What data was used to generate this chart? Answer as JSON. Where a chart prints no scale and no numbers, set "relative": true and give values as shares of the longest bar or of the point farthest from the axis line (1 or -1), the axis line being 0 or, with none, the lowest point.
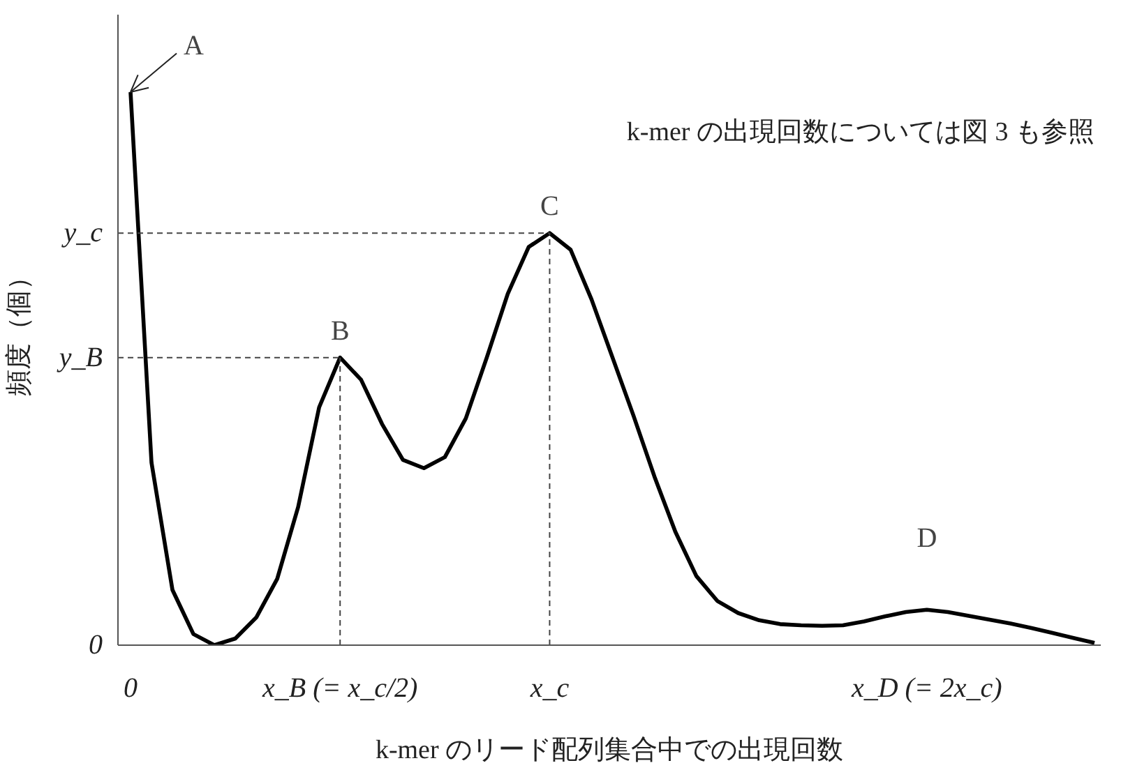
{
  "chart_data": {
    "type": "line",
    "relative": true,
    "xlabel": "k-mer のリード配列集合中での出現回数",
    "ylabel": "頻度（個）",
    "categories": [
      "0",
      null,
      null,
      null,
      null,
      null,
      null,
      null,
      null,
      null,
      "x_B (= x_c/2)",
      null,
      null,
      null,
      null,
      null,
      null,
      null,
      null,
      null,
      "x_c",
      null,
      null,
      null,
      null,
      null,
      null,
      null,
      null,
      null,
      null,
      null,
      null,
      null,
      null,
      null,
      null,
      null,
      "x_D (= 2x_c)",
      null,
      null,
      null,
      null,
      null,
      null,
      null,
      null
    ],
    "series": [
      {
        "color": "#000000",
        "values": [
          1.0,
          0.33,
          0.1,
          0.02,
          0,
          0.012,
          0.05,
          0.12,
          0.25,
          0.43,
          0.52,
          0.48,
          0.4,
          0.335,
          0.32,
          0.34,
          0.41,
          0.52,
          0.635,
          0.72,
          0.745,
          0.715,
          0.625,
          0.52,
          0.415,
          0.305,
          0.205,
          0.125,
          0.08,
          0.058,
          0.045,
          0.038,
          0.036,
          0.035,
          0.036,
          0.043,
          0.052,
          0.06,
          0.064,
          0.06,
          0.053,
          0.046,
          0.039,
          0.031,
          0.022,
          0.013,
          0.004
        ]
      }
    ],
    "annotations": [
      {
        "text": "A",
        "x": "0",
        "y": 1.0
      },
      {
        "text": "B",
        "x": "x_B (= x_c/2)",
        "y": 0.52
      },
      {
        "text": "C",
        "x": "x_c",
        "y": 0.745
      },
      {
        "text": "D",
        "x": "x_D (= 2x_c)",
        "y": 0.064
      },
      "k-mer の出現回数については図 3 も参照",
      "0"
    ],
    "ref_lines": [
      {
        "axis": "y",
        "value": 0.52,
        "label": "y_B",
        "line_style": "dashed",
        "color": "#444444"
      },
      {
        "axis": "y",
        "value": 0.745,
        "label": "y_c",
        "line_style": "dashed",
        "color": "#444444"
      },
      {
        "axis": "x",
        "value": "x_B (= x_c/2)",
        "line_style": "dashed",
        "color": "#444444"
      },
      {
        "axis": "x",
        "value": "x_c",
        "line_style": "dashed",
        "color": "#444444"
      }
    ],
    "marker": "none",
    "line_style": "solid",
    "grid": false
  }
}
